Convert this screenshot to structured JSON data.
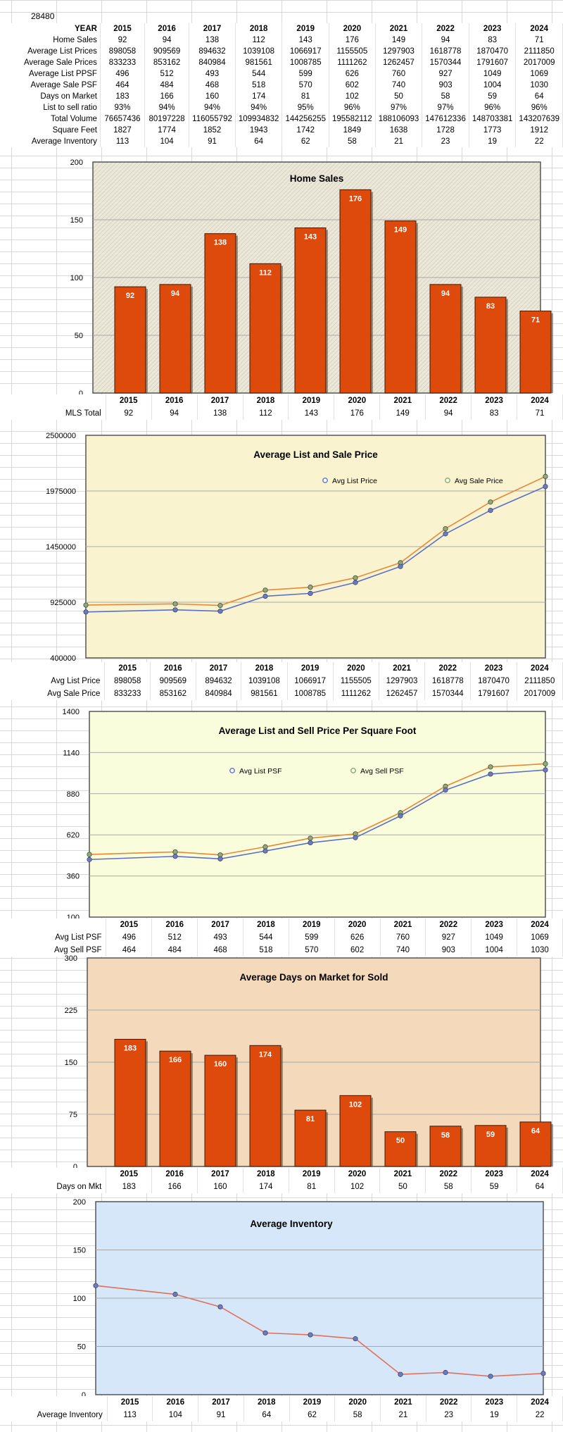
{
  "zip": "28480",
  "table": {
    "header_label": "YEAR",
    "years": [
      "2015",
      "2016",
      "2017",
      "2018",
      "2019",
      "2020",
      "2021",
      "2022",
      "2023",
      "2024"
    ],
    "rows": [
      {
        "label": "Home Sales",
        "values": [
          "92",
          "94",
          "138",
          "112",
          "143",
          "176",
          "149",
          "94",
          "83",
          "71"
        ]
      },
      {
        "label": "Average List Prices",
        "values": [
          "898058",
          "909569",
          "894632",
          "1039108",
          "1066917",
          "1155505",
          "1297903",
          "1618778",
          "1870470",
          "2111850"
        ]
      },
      {
        "label": "Average Sale Prices",
        "values": [
          "833233",
          "853162",
          "840984",
          "981561",
          "1008785",
          "1111262",
          "1262457",
          "1570344",
          "1791607",
          "2017009"
        ]
      },
      {
        "label": "Average List PPSF",
        "values": [
          "496",
          "512",
          "493",
          "544",
          "599",
          "626",
          "760",
          "927",
          "1049",
          "1069"
        ]
      },
      {
        "label": "Average Sale PSF",
        "values": [
          "464",
          "484",
          "468",
          "518",
          "570",
          "602",
          "740",
          "903",
          "1004",
          "1030"
        ]
      },
      {
        "label": "Days on Market",
        "values": [
          "183",
          "166",
          "160",
          "174",
          "81",
          "102",
          "50",
          "58",
          "59",
          "64"
        ]
      },
      {
        "label": "List to sell ratio",
        "values": [
          "93%",
          "94%",
          "94%",
          "94%",
          "95%",
          "96%",
          "97%",
          "97%",
          "96%",
          "96%"
        ]
      },
      {
        "label": "Total Volume",
        "values": [
          "76657436",
          "80197228",
          "116055792",
          "109934832",
          "144256255",
          "195582112",
          "188106093",
          "147612336",
          "148703381",
          "143207639"
        ]
      },
      {
        "label": "Square Feet",
        "values": [
          "1827",
          "1774",
          "1852",
          "1943",
          "1742",
          "1849",
          "1638",
          "1728",
          "1773",
          "1912"
        ]
      },
      {
        "label": "Average Inventory",
        "values": [
          "113",
          "104",
          "91",
          "64",
          "62",
          "58",
          "21",
          "23",
          "19",
          "22"
        ]
      }
    ]
  },
  "charts": {
    "home_sales": {
      "row_labels": [
        "MLS Total"
      ]
    },
    "list_sale_price": {
      "row_labels": [
        "Avg List Price",
        "Avg Sale Price"
      ]
    },
    "psf": {
      "row_labels": [
        "Avg List PSF",
        "Avg Sell PSF"
      ]
    },
    "dom": {
      "row_labels": [
        "Days on Mkt"
      ]
    },
    "inventory": {
      "row_labels": [
        "Average Inventory"
      ]
    }
  },
  "chart_data": [
    {
      "id": "home_sales",
      "type": "bar",
      "title": "Home Sales",
      "categories": [
        "2015",
        "2016",
        "2017",
        "2018",
        "2019",
        "2020",
        "2021",
        "2022",
        "2023",
        "2024"
      ],
      "values": [
        92,
        94,
        138,
        112,
        143,
        176,
        149,
        94,
        83,
        71
      ],
      "ylim": [
        0,
        200
      ],
      "yticks": [
        "0",
        "50",
        "100",
        "150",
        "200"
      ],
      "bar_color": "#dd4a0c",
      "plot_bg": "#ece8d9"
    },
    {
      "id": "list_sale_price",
      "type": "line",
      "title": "Average List and Sale Price",
      "categories": [
        "2015",
        "2016",
        "2017",
        "2018",
        "2019",
        "2020",
        "2021",
        "2022",
        "2023",
        "2024"
      ],
      "series": [
        {
          "name": "Avg List Price",
          "values": [
            898058,
            909569,
            894632,
            1039108,
            1066917,
            1155505,
            1297903,
            1618778,
            1870470,
            2111850
          ],
          "color": "#e8883a"
        },
        {
          "name": "Avg Sale Price",
          "values": [
            833233,
            853162,
            840984,
            981561,
            1008785,
            1111262,
            1262457,
            1570344,
            1791607,
            2017009
          ],
          "color": "#5a6fc8"
        }
      ],
      "ylim": [
        400000,
        2500000
      ],
      "yticks": [
        "400000",
        "925000",
        "1450000",
        "1975000",
        "2500000"
      ],
      "plot_bg": "#f9f3cf"
    },
    {
      "id": "psf",
      "type": "line",
      "title": "Average List and Sell Price Per Square Foot",
      "categories": [
        "2015",
        "2016",
        "2017",
        "2018",
        "2019",
        "2020",
        "2021",
        "2022",
        "2023",
        "2024"
      ],
      "series": [
        {
          "name": "Avg List PSF",
          "values": [
            496,
            512,
            493,
            544,
            599,
            626,
            760,
            927,
            1049,
            1069
          ],
          "color": "#e8883a"
        },
        {
          "name": "Avg Sell PSF",
          "values": [
            464,
            484,
            468,
            518,
            570,
            602,
            740,
            903,
            1004,
            1030
          ],
          "color": "#5a6fc8"
        }
      ],
      "ylim": [
        100,
        1400
      ],
      "yticks": [
        "100",
        "360",
        "620",
        "880",
        "1140",
        "1400"
      ],
      "plot_bg": "#fafddc"
    },
    {
      "id": "dom",
      "type": "bar",
      "title": "Average Days on Market for Sold",
      "categories": [
        "2015",
        "2016",
        "2017",
        "2018",
        "2019",
        "2020",
        "2021",
        "2022",
        "2023",
        "2024"
      ],
      "values": [
        183,
        166,
        160,
        174,
        81,
        102,
        50,
        58,
        59,
        64
      ],
      "ylim": [
        0,
        300
      ],
      "yticks": [
        "0",
        "75",
        "150",
        "225",
        "300"
      ],
      "bar_color": "#dd4a0c",
      "plot_bg": "#f5d9bb"
    },
    {
      "id": "inventory",
      "type": "line",
      "title": "Average Inventory",
      "categories": [
        "2015",
        "2016",
        "2017",
        "2018",
        "2019",
        "2020",
        "2021",
        "2022",
        "2023",
        "2024"
      ],
      "series": [
        {
          "name": "Average Inventory",
          "values": [
            113,
            104,
            91,
            64,
            62,
            58,
            21,
            23,
            19,
            22
          ],
          "color": "#e0705a"
        }
      ],
      "ylim": [
        0,
        200
      ],
      "yticks": [
        "0",
        "50",
        "100",
        "150",
        "200"
      ],
      "plot_bg": "#d6e7f9"
    }
  ]
}
